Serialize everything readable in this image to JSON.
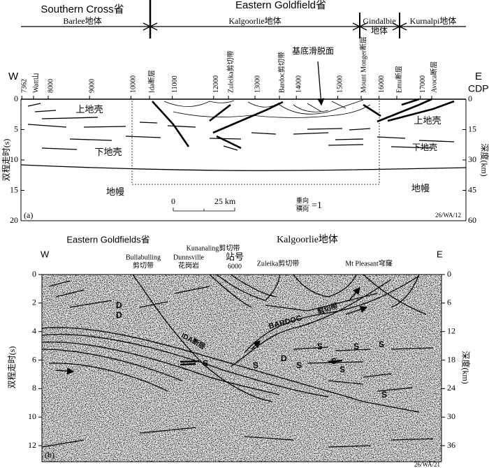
{
  "panel_a": {
    "provinces": [
      "Southern Cross省",
      "Eastern Goldfield省"
    ],
    "terranes": [
      "Barlee地体",
      "Kalgoorlie地体",
      "Gindalbie",
      "地体",
      "Kurnalpi地体"
    ],
    "west": "W",
    "east": "E",
    "cdp_title": "CDP",
    "cdp_labels": [
      7362,
      "Watt山",
      8000,
      9000,
      10000,
      "Ida断层",
      11000,
      12000,
      "Zuleika剪切带",
      13000,
      "Bardoc剪切带",
      14000,
      15000,
      "Mount Monger断层",
      16000,
      "Emu断层",
      17000,
      "Avoca断层"
    ],
    "time_ticks": [
      0,
      5,
      10,
      15,
      20
    ],
    "time_label": "双程走时(s)",
    "depth_ticks": [
      0,
      15,
      30,
      45,
      60
    ],
    "depth_label": "深度(km)",
    "detachment": "基底滑脱面",
    "upper_crust": [
      "上地壳",
      "上地壳"
    ],
    "lower_crust": [
      "下地壳",
      "下地壳"
    ],
    "mantle": [
      "地幔",
      "地幔"
    ],
    "scale": [
      "0",
      "25 km"
    ],
    "ratio": [
      "垂向",
      "横向",
      "=1"
    ],
    "panel_label": "(a)",
    "figure_code": "26/WA/12"
  },
  "panel_b": {
    "province": "Eastern Goldfields省",
    "terrane": "Kalgoorlie地体",
    "west": "W",
    "east": "E",
    "features": [
      "Bullabulling",
      "剪切带",
      "Kunanaling剪切带",
      "Dunnsville",
      "花岗岩",
      "站号",
      "6000",
      "Zuleika剪切带",
      "Mt Pleasant穹窿"
    ],
    "time_ticks": [
      0,
      2,
      4,
      6,
      8,
      10,
      12
    ],
    "time_label": "双程走时(s)",
    "depth_ticks": [
      0,
      6,
      12,
      18,
      24,
      30,
      36
    ],
    "depth_label": "深度(km)",
    "annotations": [
      "D",
      "D",
      "IDA断层",
      "BARDOC",
      "剪切带",
      "D"
    ],
    "s_marks": [
      "S",
      "S",
      "S",
      "S",
      "S",
      "S",
      "S",
      "S",
      "S"
    ],
    "panel_label": "(b)",
    "figure_code": "26/WA/21"
  }
}
